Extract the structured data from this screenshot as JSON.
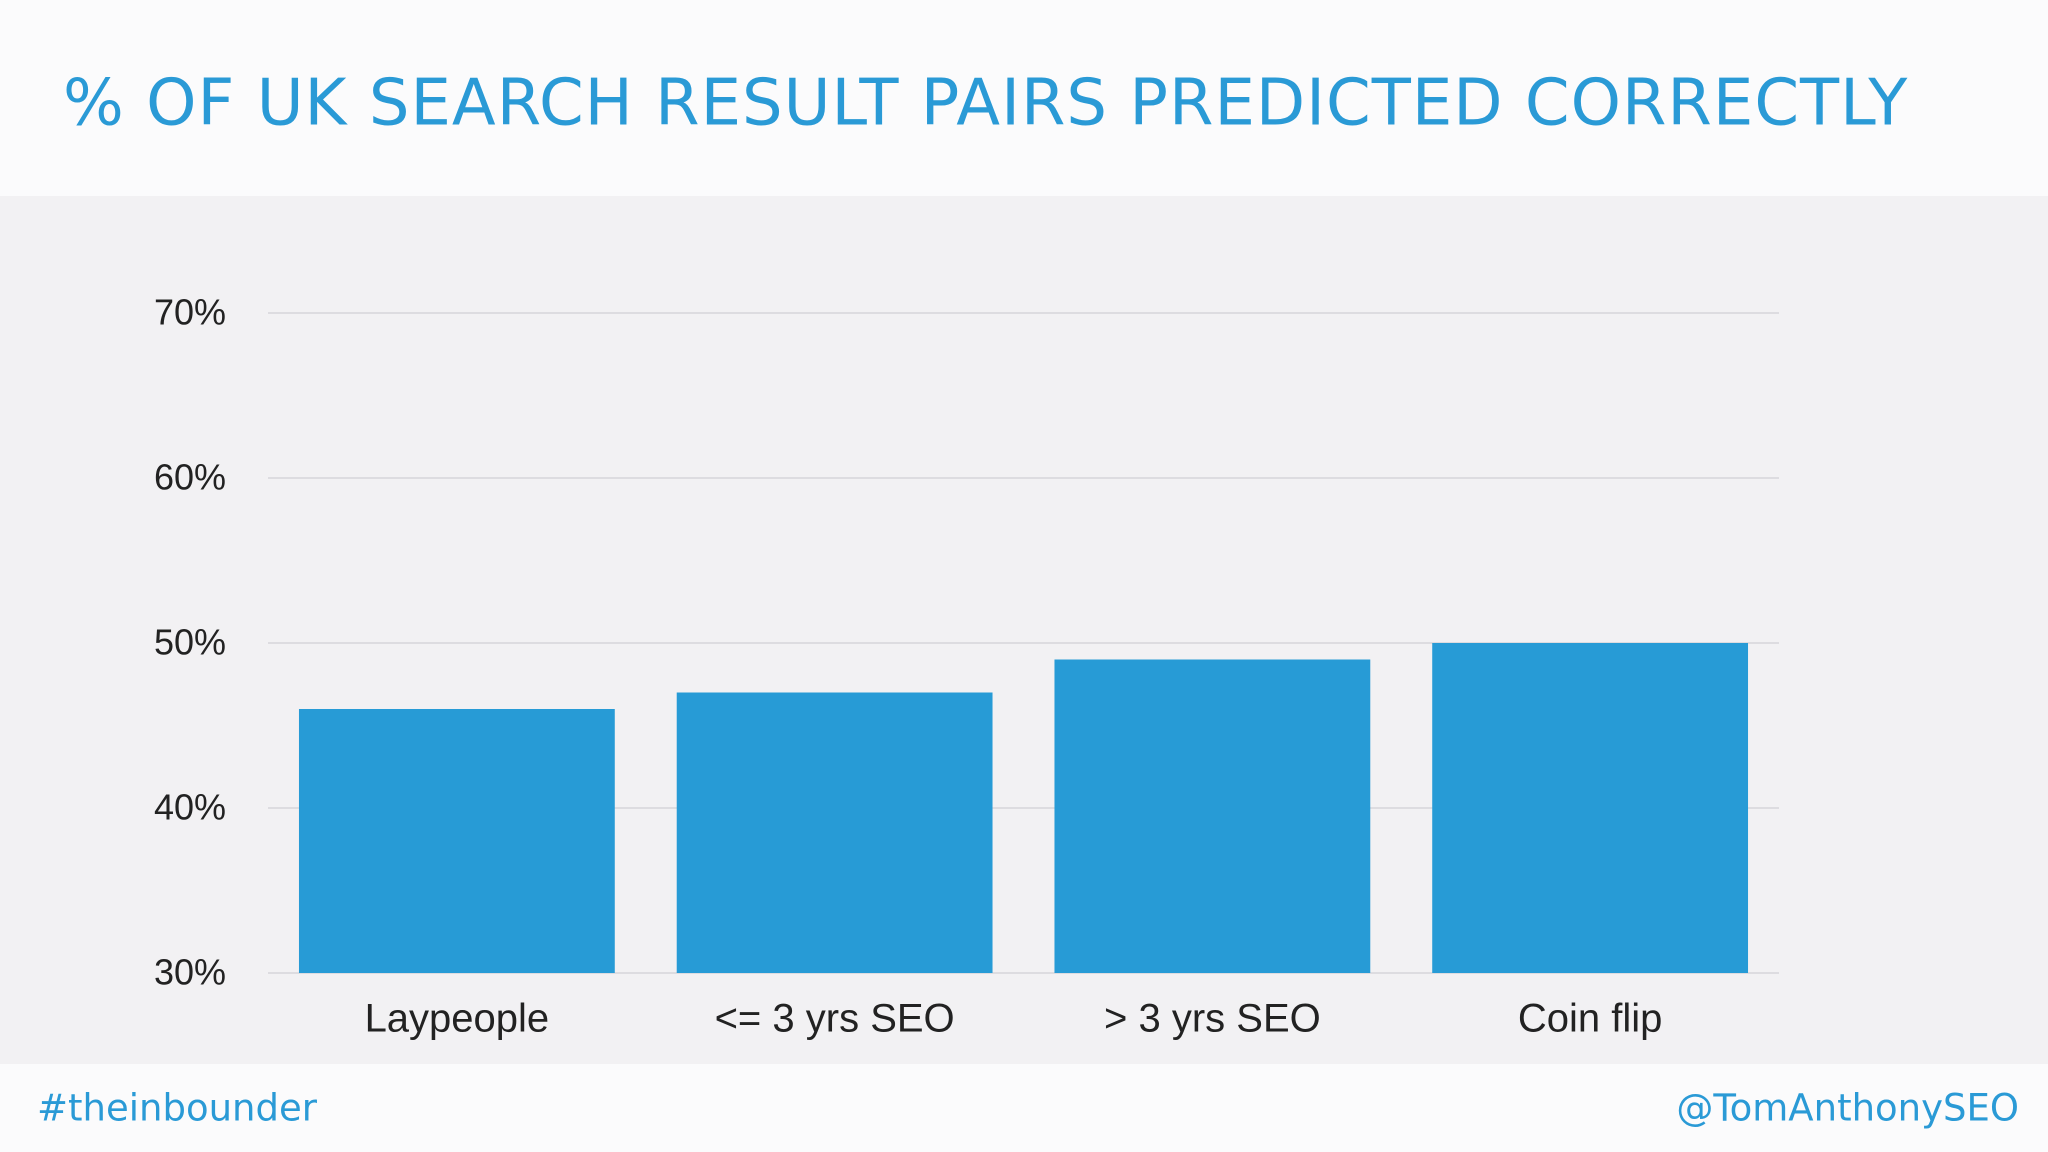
{
  "chart_data": {
    "type": "bar",
    "title": "% OF UK SEARCH RESULT PAIRS PREDICTED CORRECTLY",
    "categories": [
      "Laypeople",
      "<= 3 yrs SEO",
      "> 3 yrs SEO",
      "Coin flip"
    ],
    "values": [
      46,
      47,
      49,
      50
    ],
    "color": "#279bd6",
    "ylim": [
      30,
      70
    ],
    "yticks": [
      {
        "value": 30,
        "label": "30%"
      },
      {
        "value": 40,
        "label": "40%"
      },
      {
        "value": 50,
        "label": "50%"
      },
      {
        "value": 60,
        "label": "60%"
      },
      {
        "value": 70,
        "label": "70%"
      }
    ],
    "grid": true
  },
  "footer": {
    "left": "#theinbounder",
    "right": "@TomAnthonySEO"
  }
}
